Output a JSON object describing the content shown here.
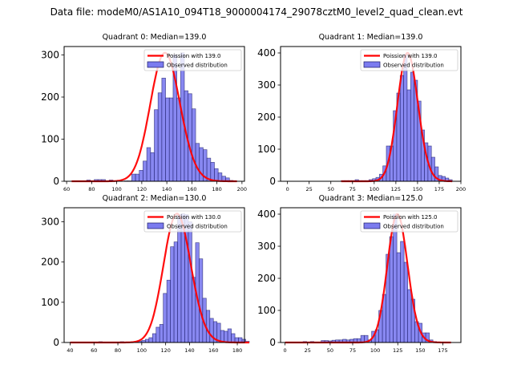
{
  "suptitle": "Data file: modeM0/AS1A10_094T18_9000004174_29078cztM0_level2_quad_clean.evt",
  "colors": {
    "bar_fill": "#7b7bef",
    "bar_edge": "#1a1a66",
    "curve": "#ff0000"
  },
  "chart_data": [
    {
      "type": "bar",
      "title": "Quadrant 0: Median=139.0",
      "legend": [
        "Poission with 139.0",
        "Observed distribution"
      ],
      "legend_position": "top-right",
      "xlim": [
        58,
        202
      ],
      "ylim": [
        0,
        320
      ],
      "xticks": [
        60,
        80,
        100,
        120,
        140,
        160,
        180,
        200
      ],
      "yticks": [
        0,
        100,
        200,
        300
      ],
      "bin_start": 64,
      "bin_width": 3,
      "values": [
        0,
        0,
        0,
        0,
        3,
        0,
        4,
        4,
        4,
        0,
        3,
        0,
        0,
        0,
        1,
        1,
        17,
        17,
        26,
        48,
        80,
        68,
        170,
        210,
        245,
        198,
        198,
        300,
        198,
        305,
        215,
        208,
        172,
        90,
        80,
        75,
        55,
        45,
        30,
        20,
        12,
        8,
        2,
        0
      ],
      "poisson_mean": 139.0,
      "poisson_peak": 305
    },
    {
      "type": "bar",
      "title": "Quadrant 1: Median=139.0",
      "legend": [
        "Poission with 139.0",
        "Observed distribution"
      ],
      "legend_position": "top-right",
      "xlim": [
        -8,
        200
      ],
      "ylim": [
        0,
        420
      ],
      "xticks": [
        0,
        25,
        50,
        75,
        100,
        125,
        150,
        175,
        200
      ],
      "yticks": [
        0,
        100,
        200,
        300,
        400
      ],
      "bin_start": 62,
      "bin_width": 4,
      "values": [
        2,
        2,
        2,
        2,
        5,
        2,
        2,
        2,
        5,
        8,
        12,
        22,
        48,
        110,
        110,
        220,
        275,
        330,
        395,
        285,
        340,
        315,
        250,
        160,
        120,
        110,
        75,
        45,
        18,
        15,
        10,
        5
      ],
      "poisson_mean": 139.0,
      "poisson_peak": 400
    },
    {
      "type": "bar",
      "title": "Quadrant 2: Median=130.0",
      "legend": [
        "Poission with 130.0",
        "Observed distribution"
      ],
      "legend_position": "top-right",
      "xlim": [
        35,
        186
      ],
      "ylim": [
        0,
        335
      ],
      "xticks": [
        40,
        60,
        80,
        100,
        120,
        140,
        160,
        180
      ],
      "yticks": [
        0,
        100,
        200,
        300
      ],
      "bin_start": 40,
      "bin_width": 3,
      "values": [
        0,
        0,
        0,
        0,
        0,
        0,
        0,
        0,
        2,
        0,
        0,
        0,
        0,
        0,
        2,
        0,
        0,
        1,
        2,
        3,
        5,
        8,
        12,
        22,
        38,
        45,
        122,
        155,
        238,
        250,
        318,
        320,
        318,
        300,
        162,
        248,
        208,
        110,
        80,
        60,
        52,
        48,
        30,
        28,
        34,
        22,
        12,
        12,
        8,
        3
      ],
      "poisson_mean": 130.0,
      "poisson_peak": 320
    },
    {
      "type": "bar",
      "title": "Quadrant 3: Median=125.0",
      "legend": [
        "Poission with 125.0",
        "Observed distribution"
      ],
      "legend_position": "top-right",
      "xlim": [
        -5,
        195
      ],
      "ylim": [
        0,
        420
      ],
      "xticks": [
        0,
        25,
        50,
        75,
        100,
        125,
        150,
        175
      ],
      "yticks": [
        0,
        100,
        200,
        300,
        400
      ],
      "bin_start": 0,
      "bin_width": 4,
      "values": [
        0,
        0,
        0,
        0,
        0,
        3,
        0,
        3,
        0,
        0,
        6,
        6,
        5,
        7,
        8,
        8,
        10,
        8,
        10,
        12,
        12,
        22,
        22,
        8,
        35,
        40,
        100,
        150,
        275,
        330,
        400,
        280,
        315,
        250,
        165,
        135,
        65,
        60,
        30,
        30,
        8,
        3,
        0,
        0,
        0,
        0
      ],
      "poisson_mean": 125.0,
      "poisson_peak": 400
    }
  ]
}
